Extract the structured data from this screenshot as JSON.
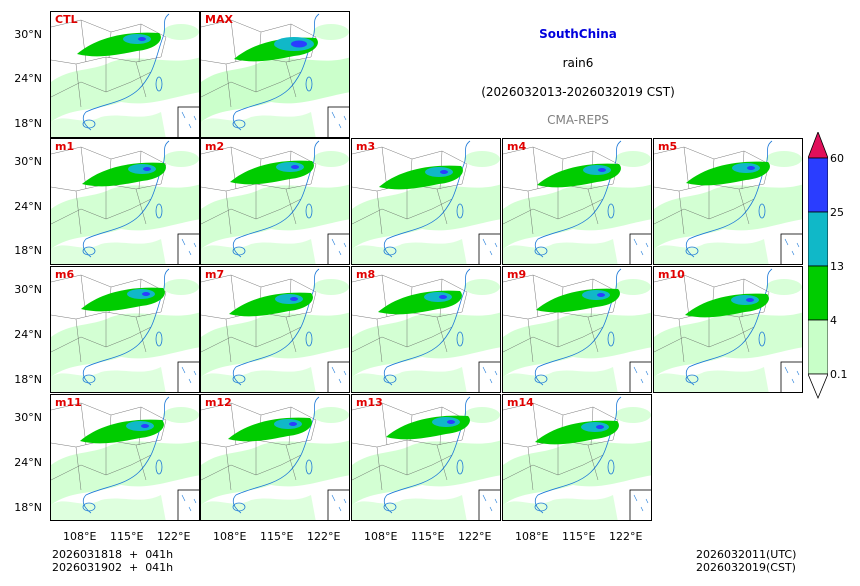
{
  "title": {
    "region": "SouthChina",
    "variable": "rain6",
    "period": "(2026032013-2026032019 CST)",
    "source": "CMA-REPS"
  },
  "panels": {
    "row1": [
      "CTL",
      "MAX"
    ],
    "row2": [
      "m1",
      "m2",
      "m3",
      "m4",
      "m5"
    ],
    "row3": [
      "m6",
      "m7",
      "m8",
      "m9",
      "m10"
    ],
    "row4": [
      "m11",
      "m12",
      "m13",
      "m14"
    ]
  },
  "axes": {
    "lat_ticks": [
      "30°N",
      "24°N",
      "18°N"
    ],
    "lon_ticks": [
      "108°E",
      "115°E",
      "122°E"
    ]
  },
  "colorbar": {
    "labels": [
      "60",
      "25",
      "13",
      "4",
      "0.1"
    ],
    "colors": {
      "over": "#e0105a",
      "c25_60": "#2a3dff",
      "c13_25": "#10b8c8",
      "c4_13": "#00cc00",
      "c01_4": "#c8ffc8"
    }
  },
  "footer": {
    "init_utc": "2026031818  +  041h",
    "init_cst": "2026031902  +  041h",
    "valid_utc": "2026032011(UTC)",
    "valid_cst": "2026032019(CST)"
  }
}
